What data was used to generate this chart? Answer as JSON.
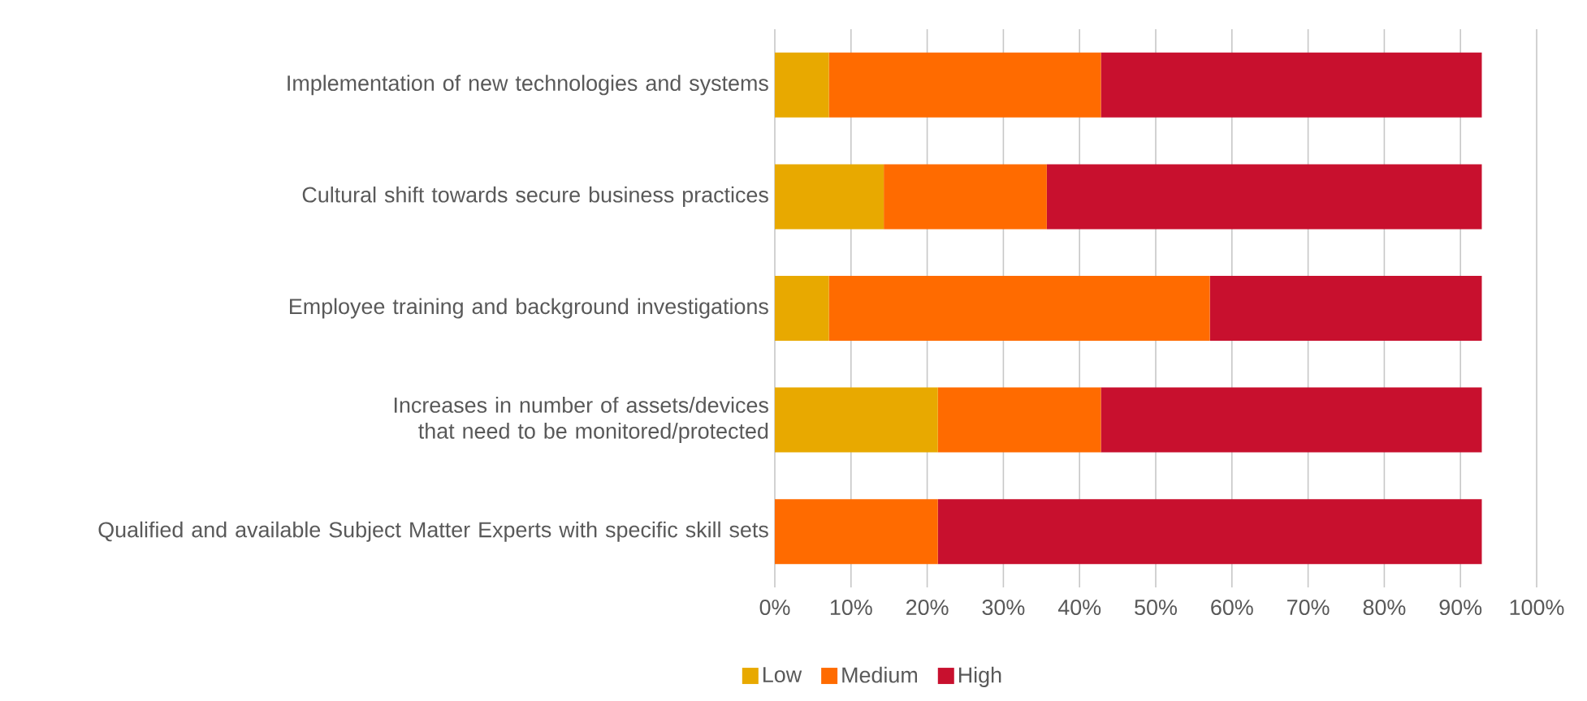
{
  "chart_data": {
    "type": "bar",
    "orientation": "horizontal",
    "stacked": true,
    "categories": [
      "Implementation of new technologies and systems",
      "Cultural shift towards secure business practices",
      "Employee training and background investigations",
      "Increases in number of assets/devices that need to be monitored/protected",
      "Qualified and available Subject Matter Experts with specific skill sets"
    ],
    "series": [
      {
        "name": "Low",
        "color": "#e8a900",
        "values": [
          7.1,
          14.3,
          7.1,
          21.4,
          0
        ]
      },
      {
        "name": "Medium",
        "color": "#ff6b00",
        "values": [
          35.7,
          21.4,
          50.0,
          21.4,
          21.4
        ]
      },
      {
        "name": "High",
        "color": "#c8102e",
        "values": [
          50.0,
          57.1,
          35.7,
          50.0,
          71.4
        ]
      }
    ],
    "xlim": [
      0,
      100
    ],
    "xticks": [
      {
        "value": 0,
        "label": "0%"
      },
      {
        "value": 10,
        "label": "10%"
      },
      {
        "value": 20,
        "label": "20%"
      },
      {
        "value": 30,
        "label": "30%"
      },
      {
        "value": 40,
        "label": "40%"
      },
      {
        "value": 50,
        "label": "50%"
      },
      {
        "value": 60,
        "label": "60%"
      },
      {
        "value": 70,
        "label": "70%"
      },
      {
        "value": 80,
        "label": "80%"
      },
      {
        "value": 90,
        "label": "90%"
      },
      {
        "value": 100,
        "label": "100%"
      }
    ],
    "grid": "x",
    "legend": "bottom"
  }
}
